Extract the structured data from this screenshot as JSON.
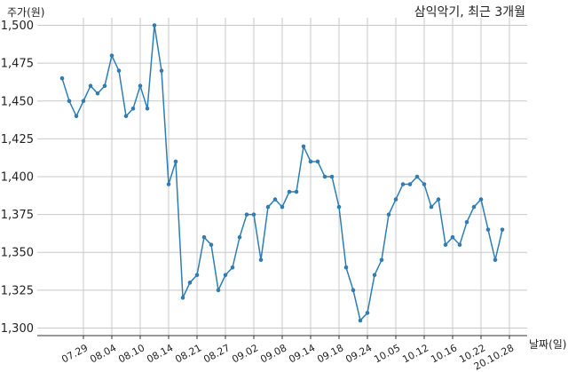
{
  "chart_data": {
    "type": "line",
    "title": "삼익악기, 최근 3개월",
    "ylabel": "주가(원)",
    "xlabel": "날짜(일)",
    "ylim": [
      1295,
      1505
    ],
    "grid": true,
    "y_ticks": [
      1300,
      1325,
      1350,
      1375,
      1400,
      1425,
      1450,
      1475,
      1500
    ],
    "y_tick_labels": [
      "1,300",
      "1,325",
      "1,350",
      "1,375",
      "1,400",
      "1,425",
      "1,450",
      "1,475",
      "1,500"
    ],
    "x_tick_labels": [
      "07.29",
      "08.04",
      "08.10",
      "08.14",
      "08.21",
      "08.27",
      "09.02",
      "09.08",
      "09.14",
      "09.18",
      "09.24",
      "10.05",
      "10.12",
      "10.16",
      "10.22",
      "20.10.28"
    ],
    "x_tick_indices": [
      3,
      7,
      11,
      15,
      19,
      23,
      27,
      31,
      35,
      39,
      43,
      47,
      51,
      55,
      59,
      63
    ],
    "series": [
      {
        "color": "#2e7db3",
        "values": [
          1465,
          1450,
          1440,
          1450,
          1460,
          1455,
          1460,
          1480,
          1470,
          1440,
          1445,
          1460,
          1445,
          1500,
          1470,
          1395,
          1410,
          1320,
          1330,
          1335,
          1360,
          1355,
          1325,
          1335,
          1340,
          1360,
          1375,
          1375,
          1345,
          1380,
          1385,
          1380,
          1390,
          1390,
          1420,
          1410,
          1410,
          1400,
          1400,
          1380,
          1340,
          1325,
          1305,
          1310,
          1335,
          1345,
          1375,
          1385,
          1395,
          1395,
          1400,
          1395,
          1380,
          1385,
          1355,
          1360,
          1355,
          1370,
          1380,
          1385,
          1365,
          1345,
          1365
        ]
      }
    ]
  }
}
